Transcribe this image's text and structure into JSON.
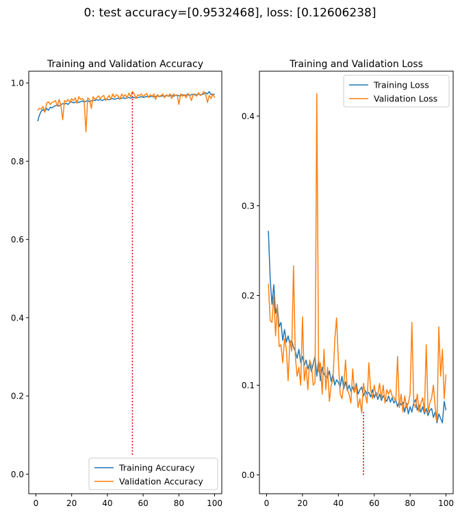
{
  "figure": {
    "suptitle": "0: test accuracy=[0.9532468], loss: [0.12606238]"
  },
  "chart_data": [
    {
      "type": "line",
      "title": "Training and Validation Accuracy",
      "xlabel": "",
      "ylabel": "",
      "xlim": [
        -4,
        104
      ],
      "ylim": [
        -0.05,
        1.03
      ],
      "xticks": [
        0,
        20,
        40,
        60,
        80,
        100
      ],
      "yticks": [
        0.0,
        0.2,
        0.4,
        0.6,
        0.8,
        1.0
      ],
      "xtick_labels": [
        "0",
        "20",
        "40",
        "60",
        "80",
        "100"
      ],
      "ytick_labels": [
        "0.0",
        "0.2",
        "0.4",
        "0.6",
        "0.8",
        "1.0"
      ],
      "grid": false,
      "legend_position": "lower-right",
      "series": [
        {
          "name": "Training Accuracy",
          "color": "#1f77b4",
          "x": [
            1,
            2,
            3,
            4,
            5,
            6,
            7,
            8,
            9,
            10,
            11,
            12,
            13,
            14,
            15,
            16,
            17,
            18,
            19,
            20,
            21,
            22,
            23,
            24,
            25,
            26,
            27,
            28,
            29,
            30,
            31,
            32,
            33,
            34,
            35,
            36,
            37,
            38,
            39,
            40,
            41,
            42,
            43,
            44,
            45,
            46,
            47,
            48,
            49,
            50,
            51,
            52,
            53,
            54,
            55,
            56,
            57,
            58,
            59,
            60,
            61,
            62,
            63,
            64,
            65,
            66,
            67,
            68,
            69,
            70,
            71,
            72,
            73,
            74,
            75,
            76,
            77,
            78,
            79,
            80,
            81,
            82,
            83,
            84,
            85,
            86,
            87,
            88,
            89,
            90,
            91,
            92,
            93,
            94,
            95,
            96,
            97,
            98,
            99,
            100
          ],
          "y": [
            0.902,
            0.918,
            0.928,
            0.932,
            0.926,
            0.935,
            0.93,
            0.938,
            0.936,
            0.94,
            0.942,
            0.944,
            0.941,
            0.945,
            0.947,
            0.946,
            0.948,
            0.945,
            0.95,
            0.952,
            0.949,
            0.951,
            0.953,
            0.95,
            0.952,
            0.954,
            0.951,
            0.953,
            0.955,
            0.952,
            0.954,
            0.956,
            0.955,
            0.957,
            0.956,
            0.958,
            0.955,
            0.957,
            0.959,
            0.958,
            0.957,
            0.959,
            0.96,
            0.958,
            0.96,
            0.961,
            0.959,
            0.961,
            0.962,
            0.96,
            0.962,
            0.963,
            0.961,
            0.963,
            0.962,
            0.964,
            0.962,
            0.964,
            0.965,
            0.963,
            0.964,
            0.966,
            0.964,
            0.965,
            0.966,
            0.964,
            0.966,
            0.967,
            0.965,
            0.966,
            0.967,
            0.966,
            0.968,
            0.966,
            0.967,
            0.968,
            0.966,
            0.968,
            0.969,
            0.967,
            0.968,
            0.97,
            0.968,
            0.969,
            0.97,
            0.968,
            0.97,
            0.971,
            0.969,
            0.97,
            0.972,
            0.97,
            0.971,
            0.972,
            0.975,
            0.972,
            0.978,
            0.97,
            0.972,
            0.97
          ]
        },
        {
          "name": "Validation Accuracy",
          "color": "#ff7f0e",
          "x": [
            1,
            2,
            3,
            4,
            5,
            6,
            7,
            8,
            9,
            10,
            11,
            12,
            13,
            14,
            15,
            16,
            17,
            18,
            19,
            20,
            21,
            22,
            23,
            24,
            25,
            26,
            27,
            28,
            29,
            30,
            31,
            32,
            33,
            34,
            35,
            36,
            37,
            38,
            39,
            40,
            41,
            42,
            43,
            44,
            45,
            46,
            47,
            48,
            49,
            50,
            51,
            52,
            53,
            54,
            55,
            56,
            57,
            58,
            59,
            60,
            61,
            62,
            63,
            64,
            65,
            66,
            67,
            68,
            69,
            70,
            71,
            72,
            73,
            74,
            75,
            76,
            77,
            78,
            79,
            80,
            81,
            82,
            83,
            84,
            85,
            86,
            87,
            88,
            89,
            90,
            91,
            92,
            93,
            94,
            95,
            96,
            97,
            98,
            99,
            100
          ],
          "y": [
            0.93,
            0.935,
            0.933,
            0.94,
            0.925,
            0.948,
            0.952,
            0.945,
            0.95,
            0.952,
            0.955,
            0.94,
            0.958,
            0.942,
            0.906,
            0.955,
            0.952,
            0.958,
            0.95,
            0.96,
            0.955,
            0.962,
            0.948,
            0.965,
            0.958,
            0.96,
            0.955,
            0.875,
            0.962,
            0.958,
            0.935,
            0.965,
            0.958,
            0.962,
            0.967,
            0.96,
            0.965,
            0.968,
            0.955,
            0.962,
            0.968,
            0.958,
            0.972,
            0.963,
            0.97,
            0.967,
            0.958,
            0.972,
            0.965,
            0.97,
            0.962,
            0.974,
            0.965,
            0.978,
            0.972,
            0.96,
            0.97,
            0.968,
            0.972,
            0.965,
            0.97,
            0.973,
            0.963,
            0.97,
            0.966,
            0.972,
            0.958,
            0.97,
            0.965,
            0.968,
            0.972,
            0.962,
            0.97,
            0.966,
            0.972,
            0.96,
            0.972,
            0.968,
            0.97,
            0.945,
            0.972,
            0.966,
            0.97,
            0.962,
            0.973,
            0.968,
            0.955,
            0.97,
            0.972,
            0.966,
            0.975,
            0.968,
            0.972,
            0.978,
            0.97,
            0.95,
            0.968,
            0.96,
            0.972,
            0.962
          ]
        }
      ],
      "annotations": [
        {
          "type": "vline",
          "x": 54,
          "y_from": 0.05,
          "y_to": 0.978,
          "color": "#d00000",
          "style": "dotted"
        }
      ]
    },
    {
      "type": "line",
      "title": "Training and Validation Loss",
      "xlabel": "",
      "ylabel": "",
      "xlim": [
        -4,
        104
      ],
      "ylim": [
        -0.021,
        0.45
      ],
      "xticks": [
        0,
        20,
        40,
        60,
        80,
        100
      ],
      "yticks": [
        0.0,
        0.1,
        0.2,
        0.3,
        0.4
      ],
      "xtick_labels": [
        "0",
        "20",
        "40",
        "60",
        "80",
        "100"
      ],
      "ytick_labels": [
        "0.0",
        "0.1",
        "0.2",
        "0.3",
        "0.4"
      ],
      "grid": false,
      "legend_position": "upper-right",
      "series": [
        {
          "name": "Training Loss",
          "color": "#1f77b4",
          "x": [
            1,
            2,
            3,
            4,
            5,
            6,
            7,
            8,
            9,
            10,
            11,
            12,
            13,
            14,
            15,
            16,
            17,
            18,
            19,
            20,
            21,
            22,
            23,
            24,
            25,
            26,
            27,
            28,
            29,
            30,
            31,
            32,
            33,
            34,
            35,
            36,
            37,
            38,
            39,
            40,
            41,
            42,
            43,
            44,
            45,
            46,
            47,
            48,
            49,
            50,
            51,
            52,
            53,
            54,
            55,
            56,
            57,
            58,
            59,
            60,
            61,
            62,
            63,
            64,
            65,
            66,
            67,
            68,
            69,
            70,
            71,
            72,
            73,
            74,
            75,
            76,
            77,
            78,
            79,
            80,
            81,
            82,
            83,
            84,
            85,
            86,
            87,
            88,
            89,
            90,
            91,
            92,
            93,
            94,
            95,
            96,
            97,
            98,
            99,
            100
          ],
          "y": [
            0.272,
            0.218,
            0.19,
            0.212,
            0.18,
            0.188,
            0.165,
            0.17,
            0.15,
            0.162,
            0.148,
            0.155,
            0.145,
            0.15,
            0.142,
            0.138,
            0.13,
            0.14,
            0.125,
            0.132,
            0.122,
            0.128,
            0.118,
            0.125,
            0.115,
            0.124,
            0.132,
            0.11,
            0.128,
            0.105,
            0.12,
            0.112,
            0.11,
            0.108,
            0.116,
            0.104,
            0.112,
            0.1,
            0.106,
            0.103,
            0.098,
            0.11,
            0.096,
            0.104,
            0.094,
            0.1,
            0.093,
            0.098,
            0.092,
            0.102,
            0.09,
            0.095,
            0.098,
            0.088,
            0.094,
            0.09,
            0.092,
            0.087,
            0.095,
            0.086,
            0.092,
            0.084,
            0.09,
            0.083,
            0.088,
            0.085,
            0.082,
            0.088,
            0.081,
            0.086,
            0.08,
            0.084,
            0.076,
            0.082,
            0.078,
            0.081,
            0.07,
            0.08,
            0.068,
            0.076,
            0.07,
            0.08,
            0.084,
            0.072,
            0.078,
            0.07,
            0.076,
            0.068,
            0.074,
            0.066,
            0.072,
            0.074,
            0.064,
            0.07,
            0.058,
            0.068,
            0.063,
            0.058,
            0.082,
            0.072
          ]
        },
        {
          "name": "Validation Loss",
          "color": "#ff7f0e",
          "x": [
            1,
            2,
            3,
            4,
            5,
            6,
            7,
            8,
            9,
            10,
            11,
            12,
            13,
            14,
            15,
            16,
            17,
            18,
            19,
            20,
            21,
            22,
            23,
            24,
            25,
            26,
            27,
            28,
            29,
            30,
            31,
            32,
            33,
            34,
            35,
            36,
            37,
            38,
            39,
            40,
            41,
            42,
            43,
            44,
            45,
            46,
            47,
            48,
            49,
            50,
            51,
            52,
            53,
            54,
            55,
            56,
            57,
            58,
            59,
            60,
            61,
            62,
            63,
            64,
            65,
            66,
            67,
            68,
            69,
            70,
            71,
            72,
            73,
            74,
            75,
            76,
            77,
            78,
            79,
            80,
            81,
            82,
            83,
            84,
            85,
            86,
            87,
            88,
            89,
            90,
            91,
            92,
            93,
            94,
            95,
            96,
            97,
            98,
            99,
            100
          ],
          "y": [
            0.213,
            0.172,
            0.17,
            0.2,
            0.155,
            0.19,
            0.143,
            0.145,
            0.125,
            0.152,
            0.14,
            0.105,
            0.15,
            0.138,
            0.233,
            0.132,
            0.11,
            0.12,
            0.1,
            0.176,
            0.105,
            0.12,
            0.095,
            0.128,
            0.122,
            0.1,
            0.103,
            0.425,
            0.115,
            0.125,
            0.09,
            0.14,
            0.095,
            0.12,
            0.082,
            0.1,
            0.105,
            0.15,
            0.175,
            0.128,
            0.09,
            0.085,
            0.1,
            0.128,
            0.095,
            0.09,
            0.08,
            0.118,
            0.092,
            0.099,
            0.075,
            0.085,
            0.069,
            0.102,
            0.09,
            0.08,
            0.125,
            0.095,
            0.085,
            0.1,
            0.088,
            0.09,
            0.102,
            0.085,
            0.1,
            0.08,
            0.095,
            0.09,
            0.095,
            0.088,
            0.086,
            0.082,
            0.132,
            0.075,
            0.09,
            0.07,
            0.088,
            0.075,
            0.08,
            0.09,
            0.17,
            0.08,
            0.075,
            0.09,
            0.07,
            0.08,
            0.086,
            0.07,
            0.145,
            0.07,
            0.08,
            0.086,
            0.1,
            0.075,
            0.06,
            0.165,
            0.11,
            0.14,
            0.085,
            0.112
          ]
        }
      ],
      "annotations": [
        {
          "type": "vline",
          "x": 54,
          "y_from": 0.0,
          "y_to": 0.07,
          "color": "#d00000",
          "style": "dotted"
        }
      ]
    }
  ]
}
